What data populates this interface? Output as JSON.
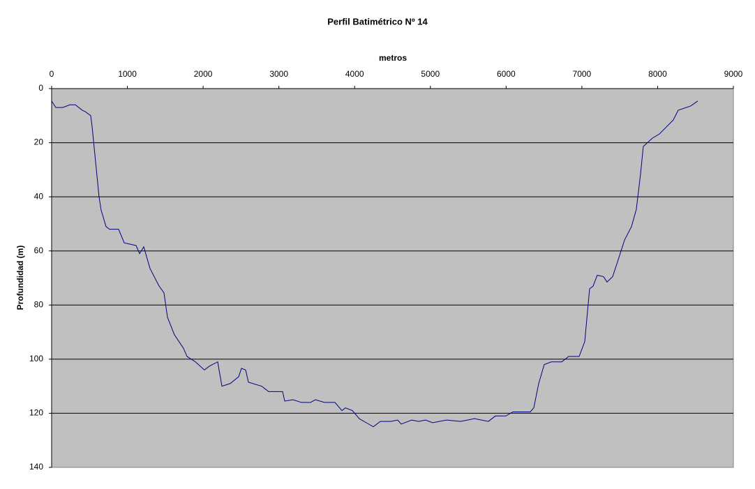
{
  "chart_data": {
    "type": "line",
    "title": "Perfil Batimétrico Nº 14",
    "x_label": "metros",
    "y_label": "Profundidad (m)",
    "x_axis_position": "top",
    "y_reversed": true,
    "grid": true,
    "background": "#c0c0c0",
    "xlim": [
      0,
      9000
    ],
    "xticks": [
      0,
      1000,
      2000,
      3000,
      4000,
      5000,
      6000,
      7000,
      8000,
      9000
    ],
    "ylim": [
      0,
      140
    ],
    "yticks": [
      0,
      20,
      40,
      60,
      80,
      100,
      120,
      140
    ],
    "x": [
      0,
      55,
      147,
      240,
      313,
      405,
      442,
      516,
      534,
      626,
      654,
      718,
      764,
      884,
      958,
      1115,
      1161,
      1216,
      1299,
      1419,
      1483,
      1529,
      1621,
      1741,
      1787,
      1898,
      2017,
      2082,
      2192,
      2248,
      2358,
      2469,
      2506,
      2561,
      2598,
      2773,
      2865,
      3049,
      3077,
      3187,
      3298,
      3417,
      3482,
      3602,
      3740,
      3832,
      3878,
      3970,
      4062,
      4154,
      4246,
      4339,
      4477,
      4569,
      4615,
      4753,
      4845,
      4937,
      5029,
      5214,
      5398,
      5582,
      5766,
      5858,
      5996,
      6089,
      6181,
      6319,
      6365,
      6430,
      6503,
      6595,
      6734,
      6826,
      6964,
      7038,
      7102,
      7148,
      7203,
      7286,
      7332,
      7406,
      7471,
      7563,
      7655,
      7719,
      7774,
      7811,
      7931,
      8023,
      8115,
      8207,
      8272,
      8438,
      8530
    ],
    "series": [
      {
        "color": "#000080",
        "values": [
          4.6,
          7,
          7,
          6,
          6,
          8,
          8.5,
          10,
          14,
          40,
          45,
          51,
          52,
          52,
          57,
          58,
          61,
          58.5,
          66.5,
          73,
          75.5,
          84.5,
          91,
          96,
          99,
          101,
          104,
          102.6,
          101,
          110,
          109,
          106.5,
          103.4,
          104,
          108.5,
          110,
          112,
          112,
          115.5,
          115,
          116,
          116,
          115,
          116,
          116,
          119,
          118,
          119,
          122,
          123.5,
          125,
          123,
          123,
          122.5,
          124,
          122.5,
          123,
          122.5,
          123.5,
          122.5,
          123,
          122,
          123,
          121,
          121,
          119.5,
          119.5,
          119.5,
          118,
          109,
          102,
          101,
          101,
          99,
          99,
          93.5,
          74,
          73,
          69,
          69.5,
          71.5,
          69.5,
          64,
          56,
          51,
          44.6,
          31.7,
          21.4,
          18.3,
          16.8,
          14.2,
          11.6,
          8,
          6.4,
          4.6
        ]
      }
    ]
  }
}
